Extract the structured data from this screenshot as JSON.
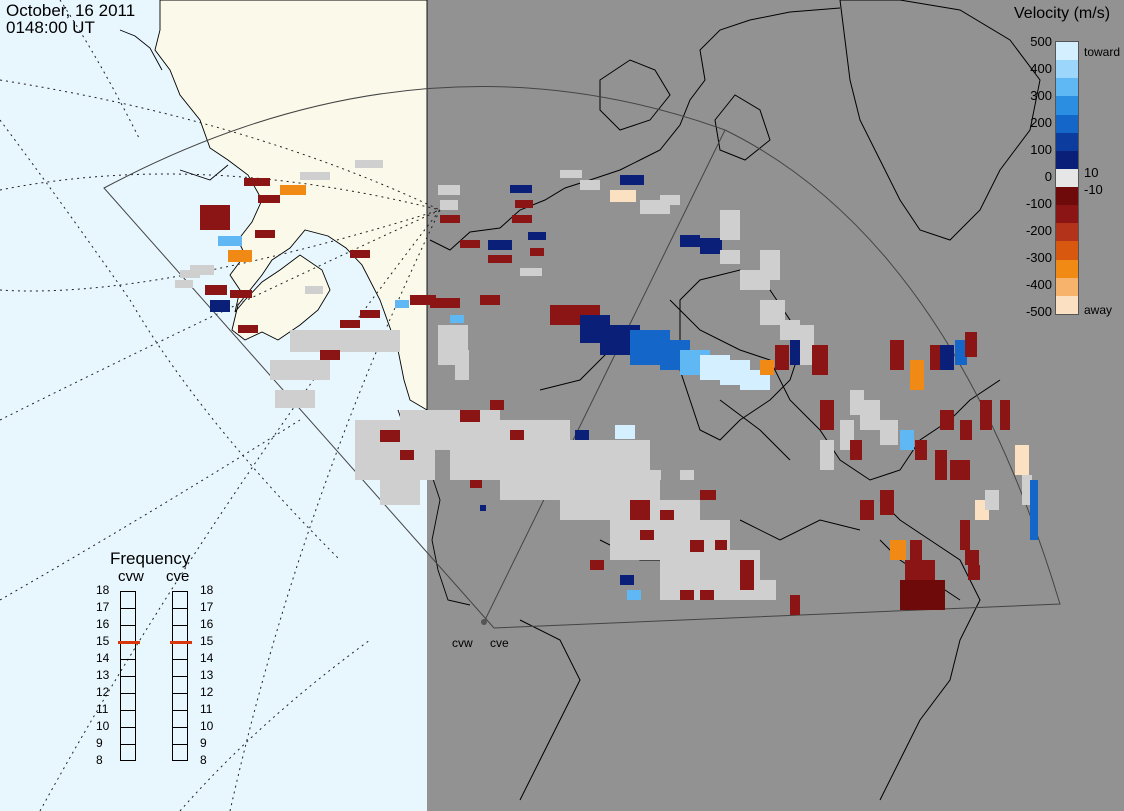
{
  "header": {
    "date": "October, 16 2011",
    "time": "0148:00 UT"
  },
  "colorbar": {
    "title": "Velocity (m/s)",
    "ticks": [
      "500",
      "400",
      "300",
      "200",
      "100",
      "10",
      "0",
      "-10",
      "-100",
      "-200",
      "-300",
      "-400",
      "-500"
    ],
    "top_label": "toward",
    "bottom_label": "away",
    "colors": [
      "#d4efff",
      "#9dd6fb",
      "#5fb7f4",
      "#2b8ee0",
      "#1466c8",
      "#0c3d9e",
      "#0a1f78",
      "#e6e6e6",
      "#6e0a0a",
      "#8b1414",
      "#b2321a",
      "#d9580f",
      "#f08a14",
      "#f7b26b",
      "#fce0c2"
    ]
  },
  "frequency": {
    "title": "Frequency",
    "radars": [
      "cvw",
      "cve"
    ],
    "ticks": [
      "18",
      "17",
      "16",
      "15",
      "14",
      "13",
      "12",
      "11",
      "10",
      "9",
      "8"
    ],
    "cvw_value": 15,
    "cve_value": 15,
    "marker_color": "#d9380f"
  },
  "map": {
    "radar_labels": [
      "cvw",
      "cve"
    ],
    "land_color": "#fbfaea",
    "ocean_color": "#e8f6fe",
    "night_color": "#929292",
    "scatter_gray": "#cfcfcf"
  }
}
